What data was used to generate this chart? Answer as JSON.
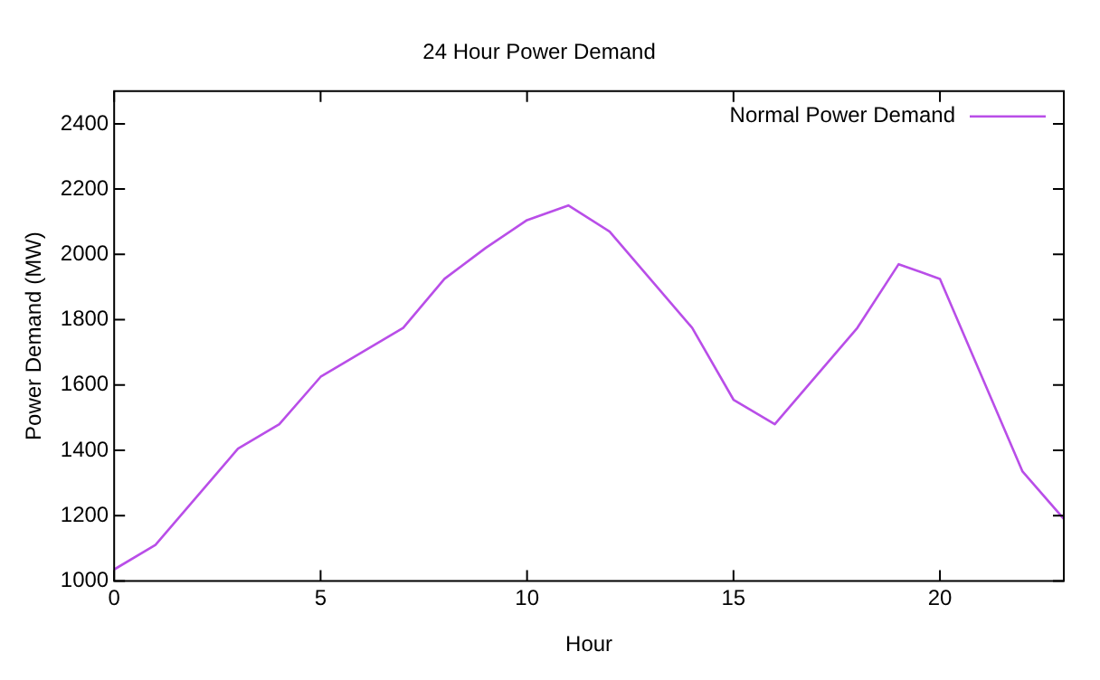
{
  "chart_data": {
    "type": "line",
    "title": "24 Hour Power Demand",
    "xlabel": "Hour",
    "ylabel": "Power Demand (MW)",
    "x": [
      0,
      1,
      3,
      4,
      5,
      7,
      8,
      9,
      10,
      11,
      12,
      14,
      15,
      16,
      18,
      19,
      20,
      22,
      23
    ],
    "series": [
      {
        "name": "Normal Power Demand",
        "color": "#b94ee8",
        "values": [
          1035,
          1110,
          1405,
          1480,
          1625,
          1775,
          1925,
          2020,
          2105,
          2150,
          2070,
          1775,
          1555,
          1480,
          1775,
          1970,
          1925,
          1335,
          1190
        ]
      }
    ],
    "xlim": [
      0,
      23
    ],
    "xticks": [
      0,
      5,
      10,
      15,
      20
    ],
    "ylim": [
      1000,
      2500
    ],
    "yticks": [
      1000,
      1200,
      1400,
      1600,
      1800,
      2000,
      2200,
      2400
    ],
    "legend": "top right",
    "grid": false,
    "marker": "none",
    "line_style": "solid"
  }
}
